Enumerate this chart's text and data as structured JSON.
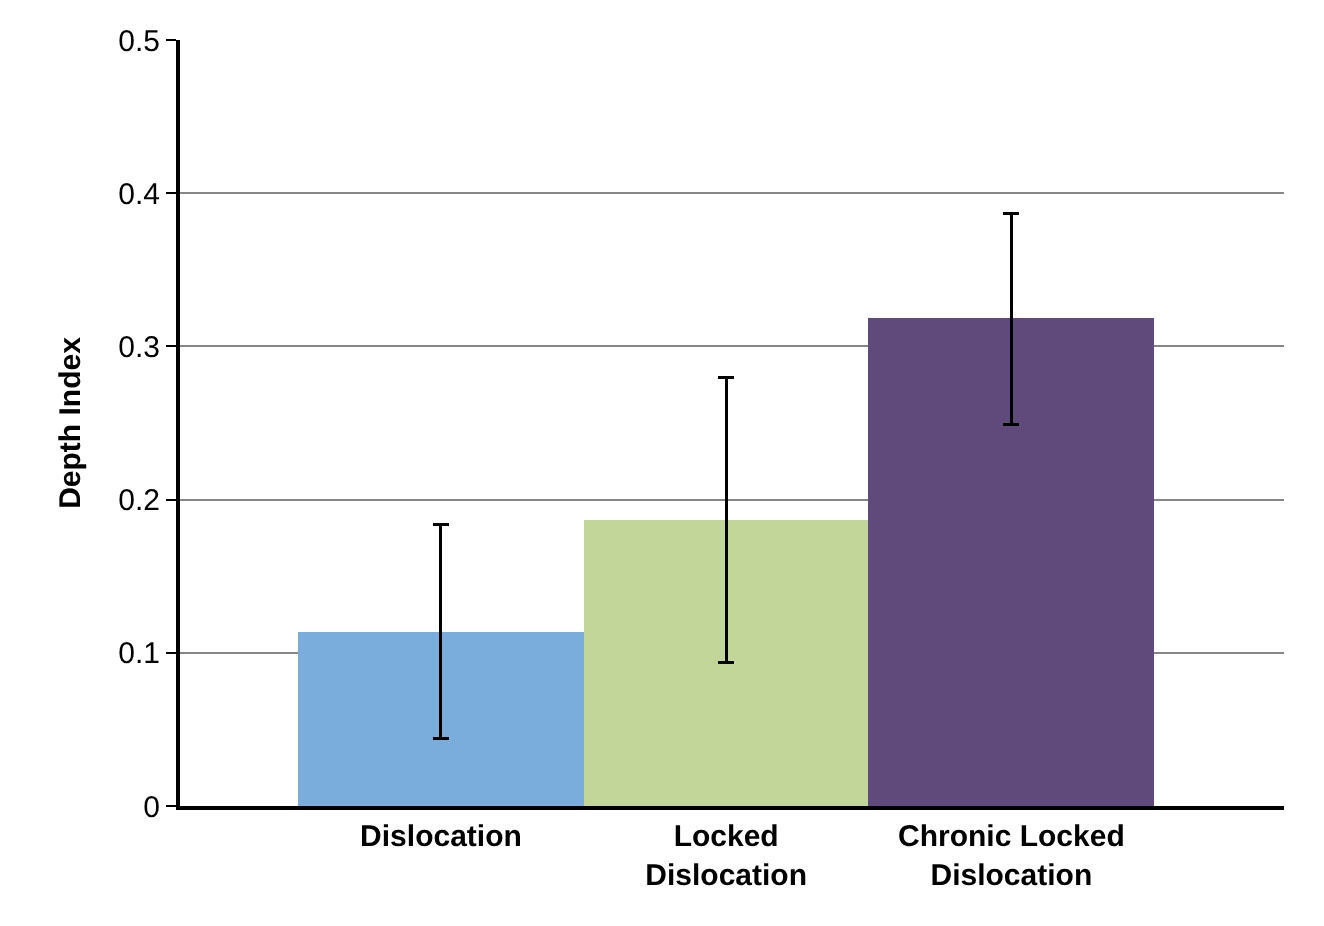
{
  "chart_data": {
    "type": "bar",
    "ylabel": "Depth Index",
    "categories": [
      "Dislocation",
      "Locked Dislocation",
      "Chronic Locked Dislocation"
    ],
    "values": [
      0.114,
      0.187,
      0.318
    ],
    "colors": [
      "#7aaddc",
      "#c3d699",
      "#604a7b"
    ],
    "errors": [
      0.07,
      0.093,
      0.069
    ],
    "ylim": [
      0,
      0.5
    ],
    "yticks": [
      0,
      0.1,
      0.2,
      0.3,
      0.4,
      0.5
    ],
    "grid": "y",
    "legend": false
  }
}
